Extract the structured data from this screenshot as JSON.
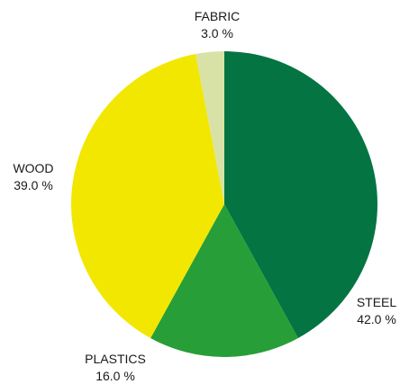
{
  "chart_data": {
    "type": "pie",
    "slices": [
      {
        "label": "STEEL",
        "value": 42.0,
        "display_value": "42.0 %",
        "color": "#047443"
      },
      {
        "label": "PLASTICS",
        "value": 16.0,
        "display_value": "16.0 %",
        "color": "#279e37"
      },
      {
        "label": "WOOD",
        "value": 39.0,
        "display_value": "39.0 %",
        "color": "#f2e700"
      },
      {
        "label": "FABRIC",
        "value": 3.0,
        "display_value": "3.0 %",
        "color": "#d8e2a6"
      }
    ],
    "start_angle_deg": 0,
    "direction": "clockwise",
    "title": "",
    "legend": "none"
  }
}
